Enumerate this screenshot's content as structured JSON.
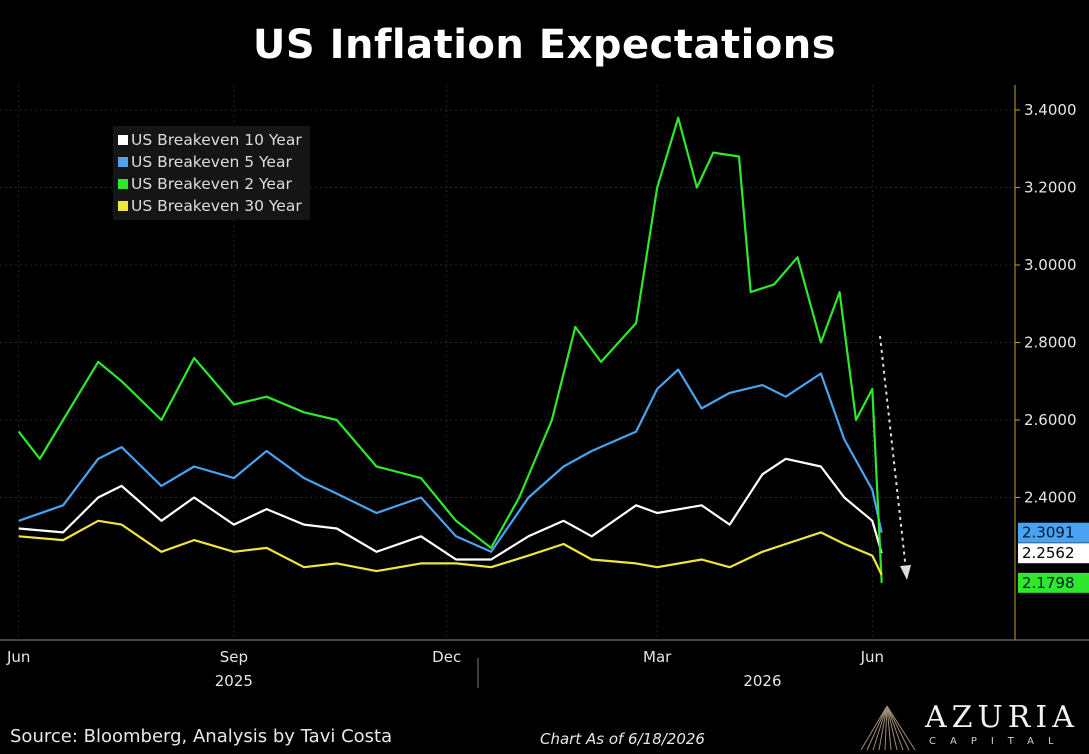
{
  "title": "US Inflation Expectations",
  "source": "Source: Bloomberg, Analysis by Tavi Costa",
  "as_of": "Chart As of 6/18/2026",
  "logo": {
    "name": "AZURIA",
    "sub": "CAPITAL"
  },
  "colors": {
    "background": "#000000",
    "grid": "#2a2a2a",
    "axis": "#c9a227"
  },
  "chart_data": {
    "type": "line",
    "x_tick_labels": [
      "Jun",
      "Sep",
      "Dec",
      "Mar",
      "Jun"
    ],
    "x_year_labels": [
      "2025",
      "2026"
    ],
    "y_tick_labels": [
      "2.4000",
      "2.6000",
      "2.8000",
      "3.0000",
      "3.2000",
      "3.4000"
    ],
    "ylim": [
      2.0,
      3.45
    ],
    "grid": true,
    "legend_position": "top-left",
    "annotation": "dashed white arrow pointing down",
    "series": [
      {
        "name": "US Breakeven 10 Year",
        "color": "#ffffff",
        "last_label": "2.2562",
        "points": [
          [
            "2025-06-01",
            2.32
          ],
          [
            "2025-06-20",
            2.31
          ],
          [
            "2025-07-05",
            2.4
          ],
          [
            "2025-07-15",
            2.43
          ],
          [
            "2025-08-01",
            2.34
          ],
          [
            "2025-08-15",
            2.4
          ],
          [
            "2025-09-01",
            2.33
          ],
          [
            "2025-09-15",
            2.37
          ],
          [
            "2025-10-01",
            2.33
          ],
          [
            "2025-10-15",
            2.32
          ],
          [
            "2025-11-01",
            2.26
          ],
          [
            "2025-11-20",
            2.3
          ],
          [
            "2025-12-05",
            2.24
          ],
          [
            "2025-12-20",
            2.24
          ],
          [
            "2026-01-05",
            2.3
          ],
          [
            "2026-01-20",
            2.34
          ],
          [
            "2026-02-01",
            2.3
          ],
          [
            "2026-02-20",
            2.38
          ],
          [
            "2026-03-01",
            2.36
          ],
          [
            "2026-03-20",
            2.38
          ],
          [
            "2026-04-01",
            2.33
          ],
          [
            "2026-04-15",
            2.46
          ],
          [
            "2026-04-25",
            2.5
          ],
          [
            "2026-05-10",
            2.48
          ],
          [
            "2026-05-20",
            2.4
          ],
          [
            "2026-06-01",
            2.34
          ],
          [
            "2026-06-05",
            2.2562
          ]
        ]
      },
      {
        "name": "US Breakeven 5 Year",
        "color": "#4aa3f0",
        "last_label": "2.3091",
        "points": [
          [
            "2025-06-01",
            2.34
          ],
          [
            "2025-06-20",
            2.38
          ],
          [
            "2025-07-05",
            2.5
          ],
          [
            "2025-07-15",
            2.53
          ],
          [
            "2025-08-01",
            2.43
          ],
          [
            "2025-08-15",
            2.48
          ],
          [
            "2025-09-01",
            2.45
          ],
          [
            "2025-09-15",
            2.52
          ],
          [
            "2025-10-01",
            2.45
          ],
          [
            "2025-10-15",
            2.41
          ],
          [
            "2025-11-01",
            2.36
          ],
          [
            "2025-11-20",
            2.4
          ],
          [
            "2025-12-05",
            2.3
          ],
          [
            "2025-12-20",
            2.26
          ],
          [
            "2026-01-05",
            2.4
          ],
          [
            "2026-01-20",
            2.48
          ],
          [
            "2026-02-01",
            2.52
          ],
          [
            "2026-02-20",
            2.57
          ],
          [
            "2026-03-01",
            2.68
          ],
          [
            "2026-03-10",
            2.73
          ],
          [
            "2026-03-20",
            2.63
          ],
          [
            "2026-04-01",
            2.67
          ],
          [
            "2026-04-15",
            2.69
          ],
          [
            "2026-04-25",
            2.66
          ],
          [
            "2026-05-10",
            2.72
          ],
          [
            "2026-05-20",
            2.55
          ],
          [
            "2026-06-01",
            2.42
          ],
          [
            "2026-06-05",
            2.3091
          ]
        ]
      },
      {
        "name": "US Breakeven 2 Year",
        "color": "#2ee82e",
        "last_label": "2.1798",
        "points": [
          [
            "2025-06-01",
            2.57
          ],
          [
            "2025-06-10",
            2.5
          ],
          [
            "2025-06-20",
            2.6
          ],
          [
            "2025-07-05",
            2.75
          ],
          [
            "2025-07-15",
            2.7
          ],
          [
            "2025-08-01",
            2.6
          ],
          [
            "2025-08-15",
            2.76
          ],
          [
            "2025-09-01",
            2.64
          ],
          [
            "2025-09-15",
            2.66
          ],
          [
            "2025-10-01",
            2.62
          ],
          [
            "2025-10-15",
            2.6
          ],
          [
            "2025-11-01",
            2.48
          ],
          [
            "2025-11-20",
            2.45
          ],
          [
            "2025-12-05",
            2.34
          ],
          [
            "2025-12-20",
            2.27
          ],
          [
            "2026-01-01",
            2.4
          ],
          [
            "2026-01-15",
            2.6
          ],
          [
            "2026-01-25",
            2.84
          ],
          [
            "2026-02-05",
            2.75
          ],
          [
            "2026-02-20",
            2.85
          ],
          [
            "2026-03-01",
            3.2
          ],
          [
            "2026-03-10",
            3.38
          ],
          [
            "2026-03-18",
            3.2
          ],
          [
            "2026-03-25",
            3.29
          ],
          [
            "2026-04-05",
            3.28
          ],
          [
            "2026-04-10",
            2.93
          ],
          [
            "2026-04-20",
            2.95
          ],
          [
            "2026-04-30",
            3.02
          ],
          [
            "2026-05-10",
            2.8
          ],
          [
            "2026-05-18",
            2.93
          ],
          [
            "2026-05-25",
            2.6
          ],
          [
            "2026-06-01",
            2.68
          ],
          [
            "2026-06-05",
            2.1798
          ]
        ]
      },
      {
        "name": "US Breakeven 30 Year",
        "color": "#f0e442",
        "last_label": "",
        "points": [
          [
            "2025-06-01",
            2.3
          ],
          [
            "2025-06-20",
            2.29
          ],
          [
            "2025-07-05",
            2.34
          ],
          [
            "2025-07-15",
            2.33
          ],
          [
            "2025-08-01",
            2.26
          ],
          [
            "2025-08-15",
            2.29
          ],
          [
            "2025-09-01",
            2.26
          ],
          [
            "2025-09-15",
            2.27
          ],
          [
            "2025-10-01",
            2.22
          ],
          [
            "2025-10-15",
            2.23
          ],
          [
            "2025-11-01",
            2.21
          ],
          [
            "2025-11-20",
            2.23
          ],
          [
            "2025-12-05",
            2.23
          ],
          [
            "2025-12-20",
            2.22
          ],
          [
            "2026-01-05",
            2.25
          ],
          [
            "2026-01-20",
            2.28
          ],
          [
            "2026-02-01",
            2.24
          ],
          [
            "2026-02-20",
            2.23
          ],
          [
            "2026-03-01",
            2.22
          ],
          [
            "2026-03-20",
            2.24
          ],
          [
            "2026-04-01",
            2.22
          ],
          [
            "2026-04-15",
            2.26
          ],
          [
            "2026-04-25",
            2.28
          ],
          [
            "2026-05-10",
            2.31
          ],
          [
            "2026-05-20",
            2.28
          ],
          [
            "2026-06-01",
            2.25
          ],
          [
            "2026-06-05",
            2.2
          ]
        ]
      }
    ]
  }
}
